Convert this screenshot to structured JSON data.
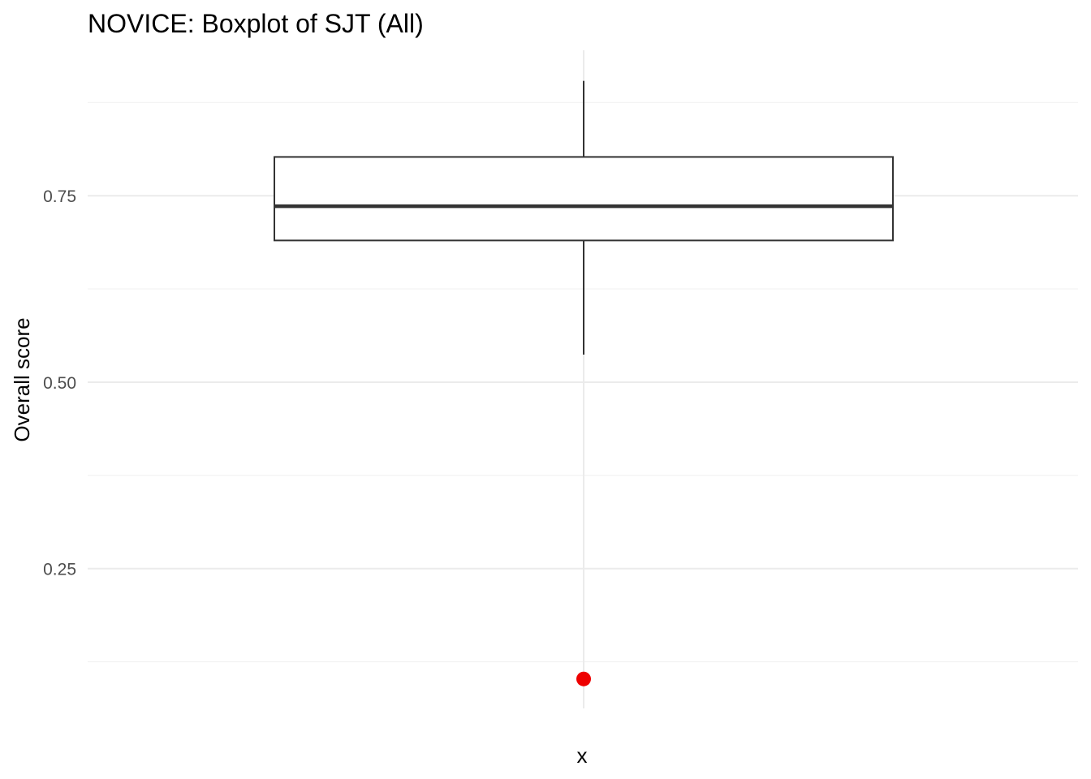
{
  "chart_data": {
    "type": "boxplot",
    "title": "NOVICE: Boxplot of SJT (All)",
    "xlabel": "x",
    "ylabel": "Overall score",
    "categories": [
      ""
    ],
    "ylim": [
      0.0625,
      0.945
    ],
    "yticks": [
      0.25,
      0.5,
      0.75
    ],
    "ytick_labels": [
      "0.25",
      "0.50",
      "0.75"
    ],
    "grid": true,
    "boxes": [
      {
        "category": "",
        "whisker_low": 0.537,
        "q1": 0.69,
        "median": 0.736,
        "q3": 0.802,
        "whisker_high": 0.904,
        "outliers": [
          0.102
        ]
      }
    ],
    "colors": {
      "box_stroke": "#333333",
      "whisker": "#333333",
      "outlier": "#ee0000",
      "grid_major": "#ebebeb",
      "grid_minor": "#f2f2f2"
    }
  }
}
